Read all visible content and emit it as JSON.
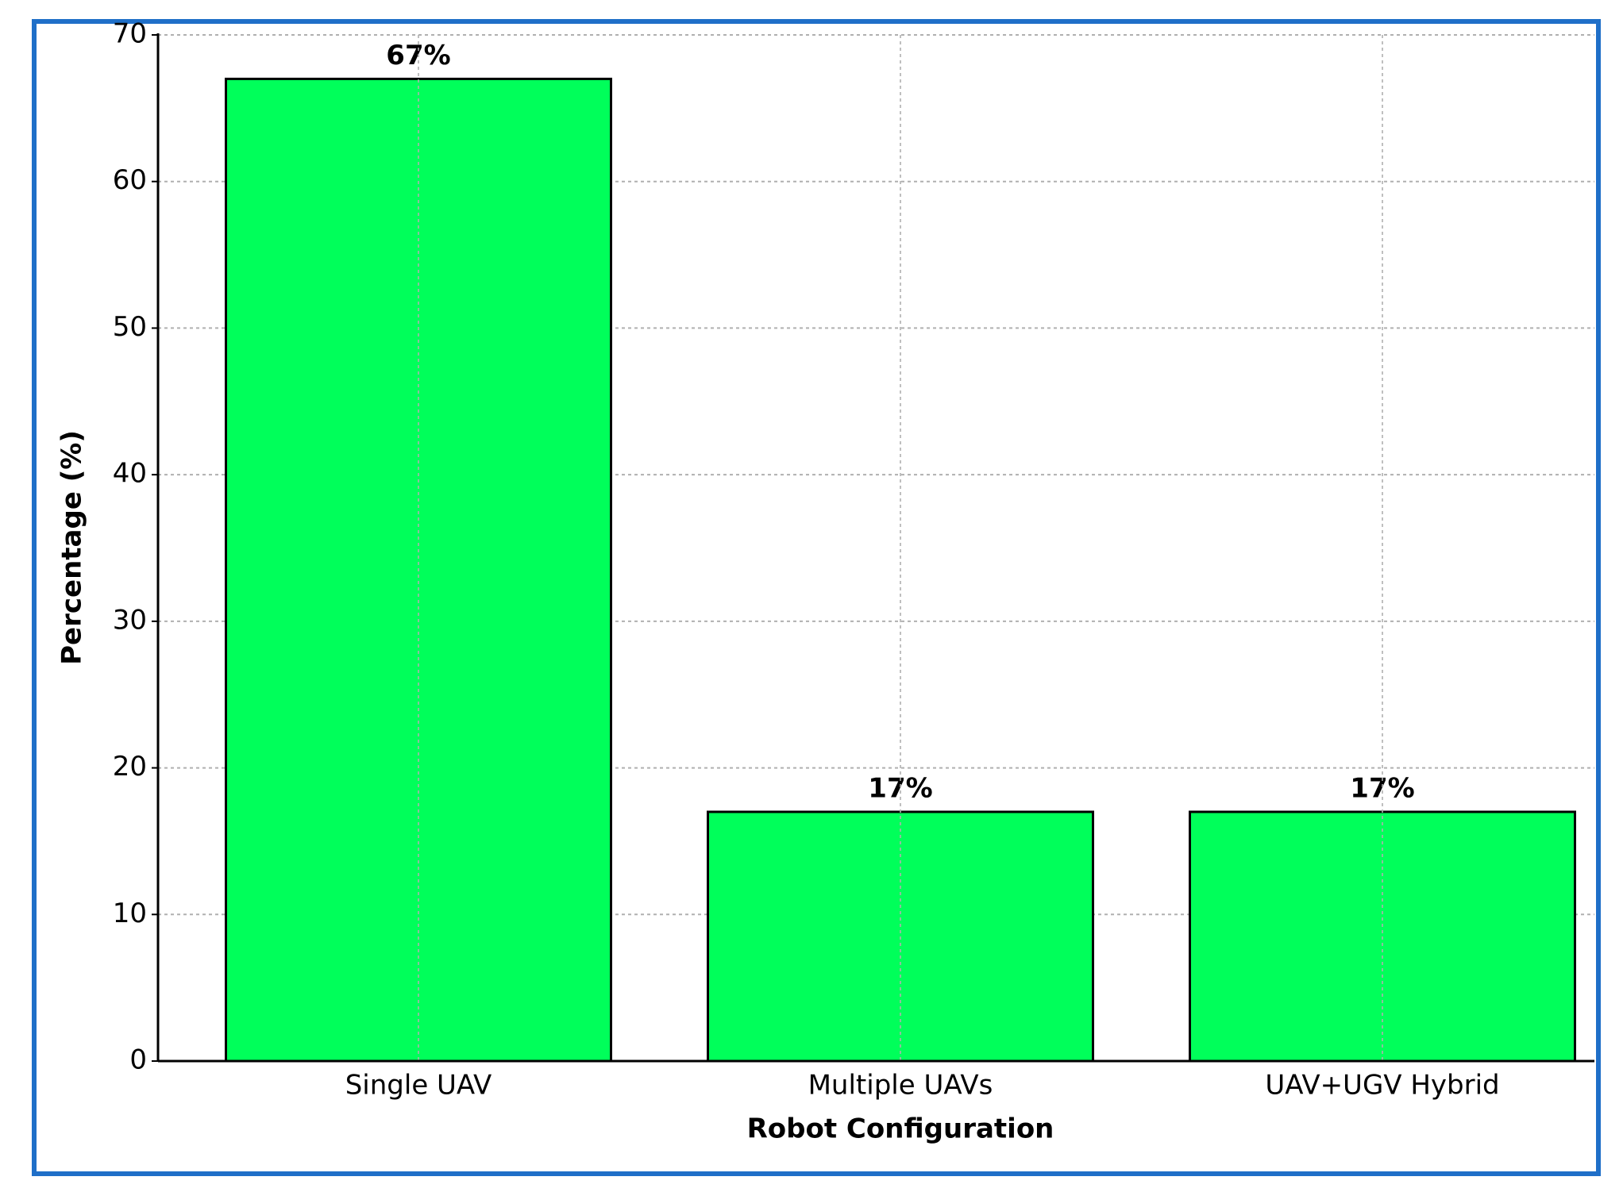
{
  "chart_data": {
    "type": "bar",
    "x_label": "Robot Configuration",
    "y_label": "Percentage (%)",
    "categories": [
      "Single UAV",
      "Multiple UAVs",
      "UAV+UGV Hybrid"
    ],
    "values": [
      67,
      17,
      17
    ],
    "value_labels": [
      "67%",
      "17%",
      "17%"
    ],
    "color": "#00ff5a",
    "ylim": [
      0,
      70
    ],
    "yticks": [
      0,
      10,
      20,
      30,
      40,
      50,
      60,
      70
    ],
    "grid": true
  }
}
